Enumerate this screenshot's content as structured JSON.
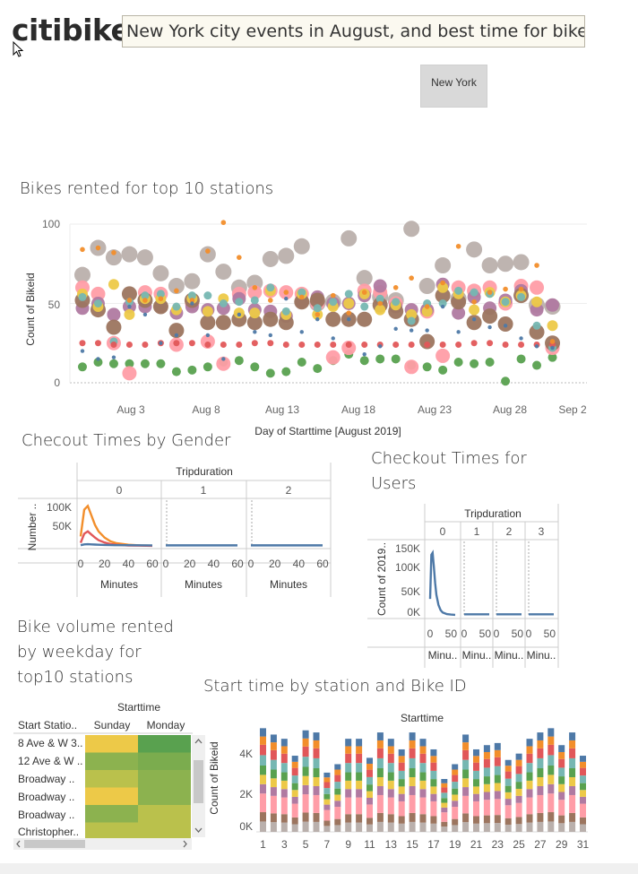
{
  "header": {
    "logo": "citibike",
    "title": "New York city events in August, and best time for bikeride",
    "filter_button": "New York"
  },
  "scatter": {
    "title": "Bikes rented for top 10 stations",
    "ylabel": "Count of Bikeid",
    "xlabel": "Day of Starttime [August 2019]",
    "y_ticks": [
      "100",
      "50",
      "0"
    ],
    "x_ticks": [
      "Aug 3",
      "Aug 8",
      "Aug 13",
      "Aug 18",
      "Aug 23",
      "Aug 28",
      "Sep 2"
    ]
  },
  "gender_chart": {
    "title": "Checout Times by Gender",
    "header": "Tripduration",
    "panels": [
      "0",
      "1",
      "2"
    ],
    "ylabel": "Number ..",
    "y_ticks": [
      "100K",
      "50K"
    ],
    "x_ticks": [
      "0",
      "20",
      "40",
      "60"
    ],
    "xlabel": "Minutes"
  },
  "users_chart": {
    "title_line1": "Checkout Times for",
    "title_line2": "Users",
    "header": "Tripduration",
    "panels": [
      "0",
      "1",
      "2",
      "3"
    ],
    "ylabel": "Count of 2019..",
    "y_ticks": [
      "150K",
      "100K",
      "50K",
      "0K"
    ],
    "x_ticks": [
      "0",
      "50"
    ],
    "xlabel": "Minu.."
  },
  "weekday_table": {
    "title_line1": "Bike volume rented",
    "title_line2": "by weekday for",
    "title_line3": "top10 stations",
    "header": "Starttime",
    "col_station": "Start Statio..",
    "columns": [
      "Sunday",
      "Monday"
    ],
    "rows": [
      "8 Ave & W 3..",
      "12 Ave & W ..",
      "Broadway ..",
      "Broadway ..",
      "Broadway ..",
      "Christopher.."
    ]
  },
  "stacked_chart": {
    "title": "Start time by station and Bike ID",
    "header": "Starttime",
    "ylabel": "Count of Bikeid",
    "y_ticks": [
      "4K",
      "2K",
      "0K"
    ],
    "x_ticks": [
      "1",
      "3",
      "5",
      "7",
      "9",
      "11",
      "13",
      "15",
      "17",
      "19",
      "21",
      "23",
      "25",
      "27",
      "29",
      "31"
    ]
  },
  "chart_data": [
    {
      "type": "scatter",
      "title": "Bikes rented for top 10 stations",
      "xlabel": "Day of Starttime [August 2019]",
      "ylabel": "Count of Bikeid",
      "ylim": [
        0,
        100
      ],
      "x": [
        1,
        2,
        3,
        4,
        5,
        6,
        7,
        8,
        9,
        10,
        11,
        12,
        13,
        14,
        15,
        16,
        17,
        18,
        19,
        20,
        21,
        22,
        23,
        24,
        25,
        26,
        27,
        28,
        29,
        30,
        31
      ],
      "series": [
        {
          "color": "#bab0ac",
          "values": [
            68,
            85,
            79,
            81,
            79,
            69,
            61,
            64,
            81,
            70,
            60,
            63,
            78,
            80,
            86,
            50,
            51,
            91,
            66,
            54,
            52,
            97,
            61,
            74,
            53,
            84,
            74,
            75,
            76,
            49,
            48
          ]
        },
        {
          "color": "#59a14f",
          "values": [
            10,
            13,
            12,
            12,
            12,
            12,
            7,
            8,
            10,
            13,
            14,
            10,
            6,
            7,
            13,
            9,
            14,
            18,
            14,
            15,
            15,
            11,
            10,
            8,
            13,
            12,
            13,
            1,
            15,
            11,
            16
          ]
        },
        {
          "color": "#ff9da7",
          "values": [
            60,
            56,
            25,
            6,
            57,
            56,
            24,
            50,
            26,
            12,
            56,
            57,
            58,
            57,
            56,
            50,
            16,
            22,
            58,
            57,
            50,
            10,
            45,
            17,
            60,
            58,
            60,
            50,
            61,
            60,
            22
          ]
        },
        {
          "color": "#b07aa1",
          "values": [
            47,
            50,
            43,
            48,
            48,
            48,
            44,
            48,
            46,
            47,
            53,
            46,
            45,
            42,
            51,
            54,
            50,
            50,
            55,
            61,
            48,
            46,
            46,
            62,
            44,
            54,
            47,
            52,
            58,
            46,
            49
          ]
        },
        {
          "color": "#9c755f",
          "values": [
            52,
            46,
            35,
            56,
            52,
            48,
            33,
            52,
            38,
            38,
            40,
            38,
            40,
            38,
            51,
            52,
            40,
            40,
            40,
            49,
            45,
            40,
            26,
            55,
            51,
            38,
            42,
            37,
            55,
            32,
            25
          ]
        },
        {
          "color": "#edc948",
          "values": [
            56,
            48,
            62,
            43,
            53,
            53,
            46,
            53,
            45,
            53,
            44,
            44,
            58,
            43,
            56,
            43,
            48,
            50,
            56,
            46,
            49,
            43,
            45,
            60,
            56,
            46,
            57,
            51,
            55,
            51,
            36
          ]
        },
        {
          "color": "#76b7b2",
          "values": [
            54,
            50,
            26,
            51,
            55,
            56,
            48,
            55,
            55,
            50,
            51,
            52,
            60,
            45,
            57,
            47,
            51,
            56,
            48,
            53,
            51,
            39,
            50,
            50,
            58,
            57,
            56,
            51,
            54,
            36,
            22
          ]
        },
        {
          "color": "#e15759",
          "values": [
            25,
            25,
            24,
            24,
            24,
            25,
            25,
            25,
            24,
            24,
            24,
            25,
            25,
            24,
            24,
            24,
            24,
            24,
            24,
            24,
            24,
            24,
            24,
            24,
            24,
            25,
            25,
            24,
            24,
            24,
            24
          ]
        },
        {
          "color": "#f28e2b",
          "values": [
            84,
            85,
            82,
            52,
            52,
            53,
            58,
            52,
            83,
            101,
            79,
            60,
            52,
            57,
            54,
            43,
            55,
            44,
            57,
            50,
            60,
            66,
            48,
            63,
            86,
            51,
            57,
            59,
            59,
            74,
            26
          ]
        },
        {
          "color": "#4e79a7",
          "values": [
            20,
            15,
            16,
            48,
            43,
            25,
            30,
            50,
            30,
            15,
            43,
            32,
            30,
            53,
            32,
            40,
            28,
            40,
            18,
            23,
            34,
            33,
            33,
            48,
            32,
            40,
            35,
            36,
            28,
            23,
            22
          ]
        }
      ]
    },
    {
      "type": "line",
      "title": "Checout Times by Gender",
      "xlabel": "Minutes",
      "ylabel": "Number ..",
      "ylim": [
        0,
        120000
      ],
      "x": [
        0,
        3,
        6,
        9,
        12,
        15,
        20,
        25,
        30,
        40,
        50,
        60
      ],
      "series": [
        {
          "color": "#f28e2b",
          "values": [
            25000,
            95000,
            105000,
            80000,
            55000,
            38000,
            22000,
            12000,
            7000,
            3000,
            1500,
            800
          ]
        },
        {
          "color": "#e15759",
          "values": [
            8000,
            32000,
            38000,
            30000,
            22000,
            15000,
            9000,
            5000,
            3000,
            1200,
            600,
            300
          ]
        },
        {
          "color": "#4e79a7",
          "values": [
            2000,
            4000,
            4500,
            4000,
            3500,
            3000,
            2500,
            2200,
            2000,
            1800,
            1600,
            1500
          ]
        }
      ]
    },
    {
      "type": "line",
      "title": "Checkout Times for Users",
      "xlabel": "Minu..",
      "ylabel": "Count of 2019..",
      "ylim": [
        0,
        170000
      ],
      "x": [
        0,
        3,
        6,
        9,
        12,
        15,
        20,
        25,
        30,
        40,
        50,
        60
      ],
      "series": [
        {
          "color": "#4e79a7",
          "values": [
            40000,
            150000,
            155000,
            120000,
            80000,
            50000,
            25000,
            12000,
            6000,
            2000,
            800,
            300
          ]
        }
      ]
    },
    {
      "type": "heatmap",
      "title": "Bike volume rented by weekday for top10 stations",
      "categories": [
        "8 Ave & W 3..",
        "12 Ave & W ..",
        "Broadway ..",
        "Broadway ..",
        "Broadway ..",
        "Christopher.."
      ],
      "columns": [
        "Sunday",
        "Monday"
      ],
      "colors": [
        [
          "#edc948",
          "#59a14f"
        ],
        [
          "#8cb24f",
          "#7bac4e"
        ],
        [
          "#bac14c",
          "#8cb24f"
        ],
        [
          "#edc948",
          "#8cb24f"
        ],
        [
          "#8cb24f",
          "#bac14c"
        ],
        [
          "#bac14c",
          "#bac14c"
        ]
      ]
    },
    {
      "type": "bar",
      "title": "Start time by station and Bike ID",
      "xlabel": "",
      "ylabel": "Count of Bikeid",
      "categories": [
        "1",
        "2",
        "3",
        "4",
        "5",
        "6",
        "7",
        "8",
        "9",
        "10",
        "11",
        "12",
        "13",
        "14",
        "15",
        "16",
        "17",
        "18",
        "19",
        "20",
        "21",
        "22",
        "23",
        "24",
        "25",
        "26",
        "27",
        "28",
        "29",
        "30",
        "31"
      ],
      "ylim": [
        0,
        5000
      ],
      "totals": [
        4900,
        4600,
        4400,
        3600,
        4800,
        4700,
        2800,
        3200,
        4400,
        4400,
        3500,
        4700,
        4400,
        3900,
        4700,
        4400,
        3900,
        2500,
        3200,
        4600,
        3900,
        4100,
        4200,
        3400,
        3700,
        4400,
        4700,
        4900,
        4100,
        4700,
        3600
      ],
      "colors": [
        "#bab0ac",
        "#9c755f",
        "#ff9da7",
        "#b07aa1",
        "#edc948",
        "#59a14f",
        "#76b7b2",
        "#e15759",
        "#f28e2b",
        "#4e79a7"
      ],
      "shares": [
        0.1,
        0.09,
        0.18,
        0.09,
        0.09,
        0.09,
        0.1,
        0.1,
        0.08,
        0.08
      ]
    }
  ]
}
